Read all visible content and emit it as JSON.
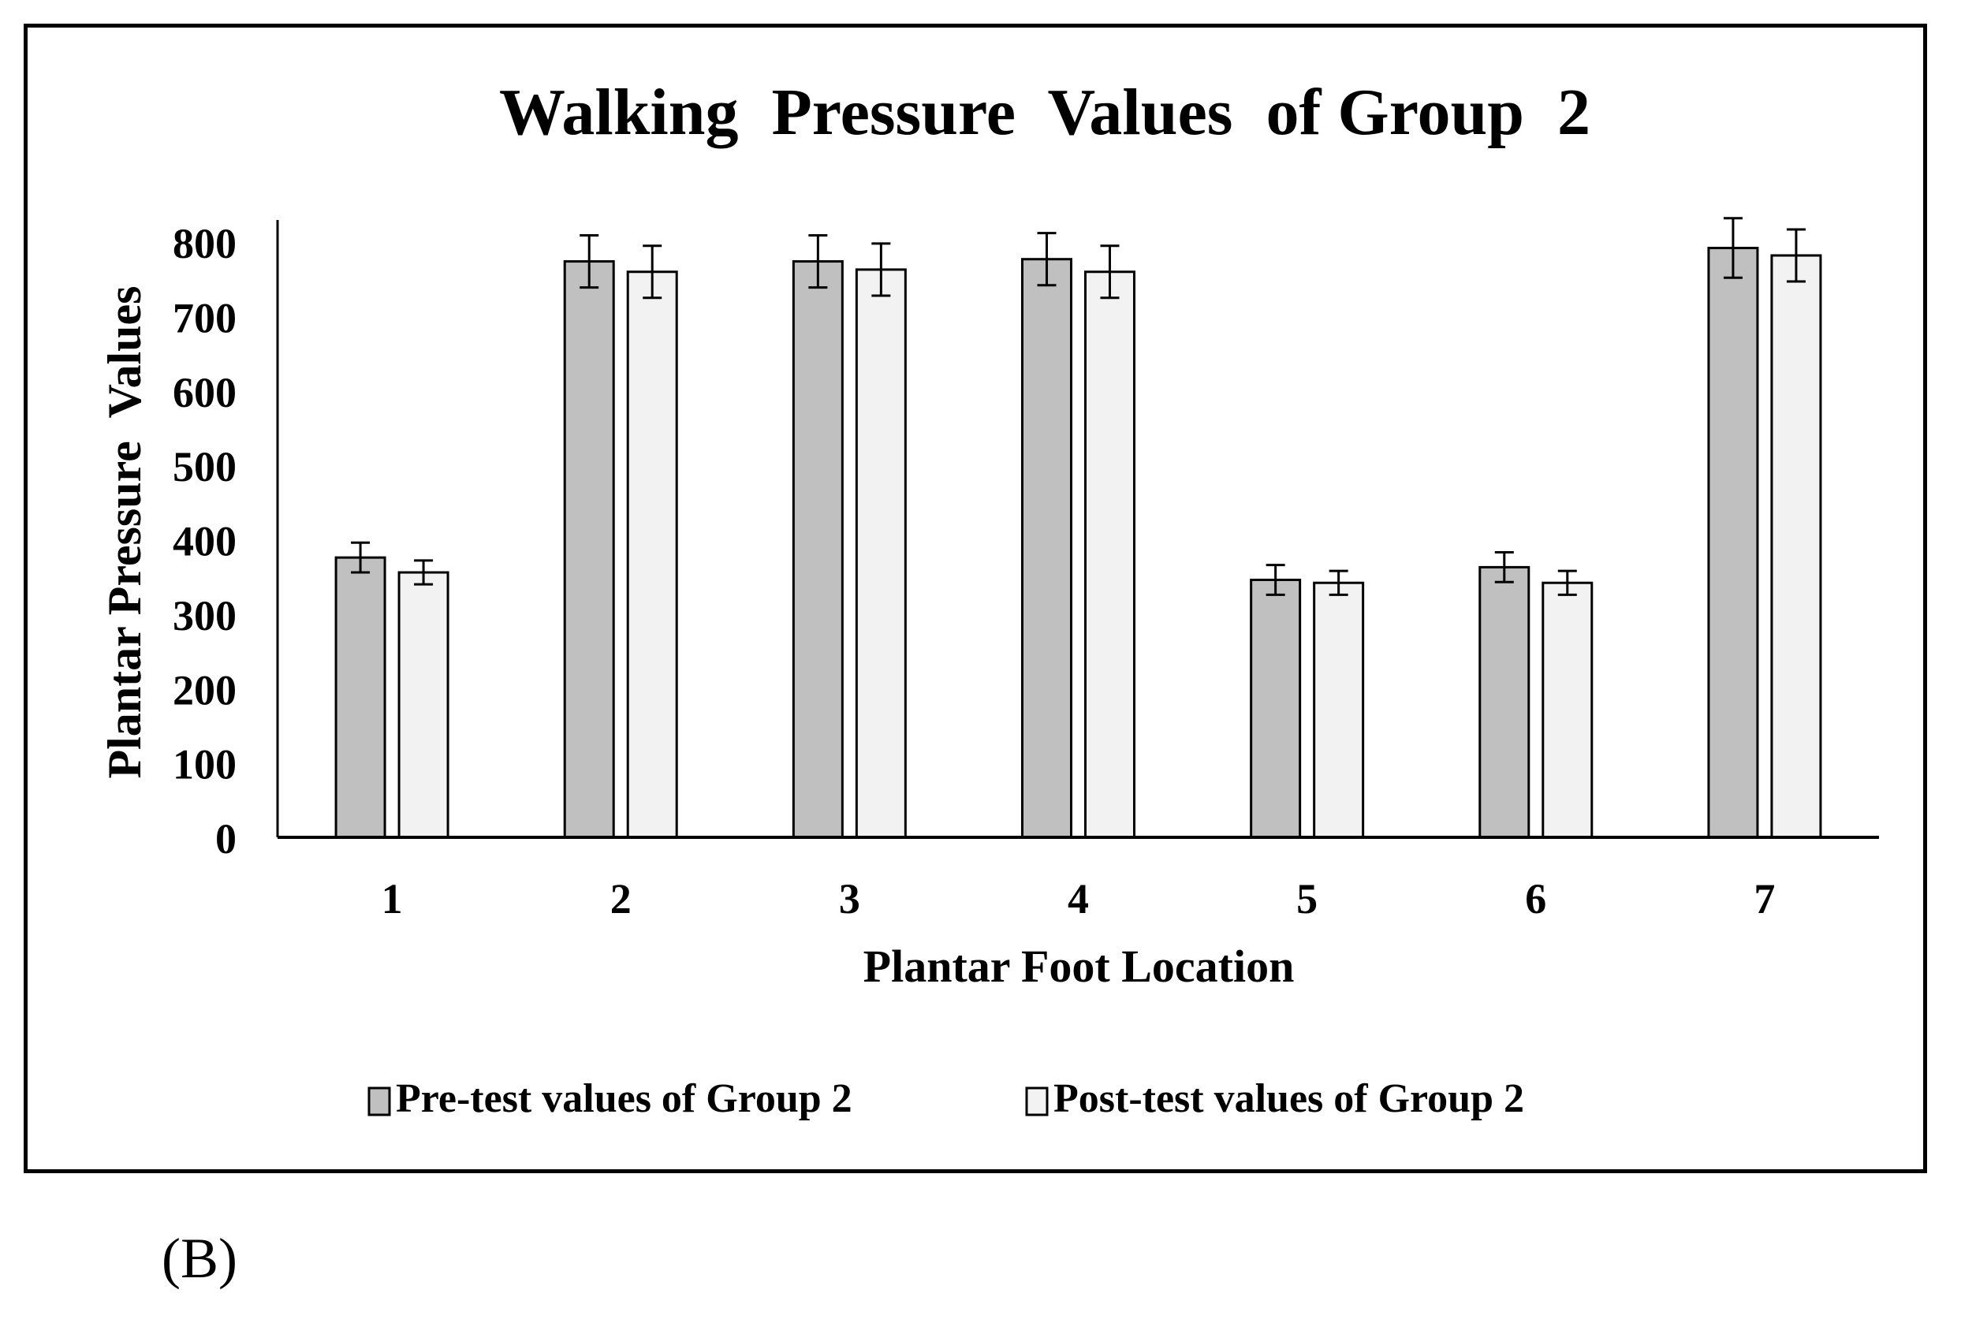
{
  "caption": "(B)",
  "chart_data": {
    "type": "bar",
    "title": "Walking  Pressure  Values  of Group  2",
    "xlabel": "Plantar Foot Location",
    "ylabel": "Plantar Pressure  Values",
    "categories": [
      "1",
      "2",
      "3",
      "4",
      "5",
      "6",
      "7"
    ],
    "ylim": [
      0,
      800
    ],
    "yticks": [
      "0",
      "100",
      "200",
      "300",
      "400",
      "500",
      "600",
      "700",
      "800"
    ],
    "grid": false,
    "legend_position": "bottom",
    "series": [
      {
        "name": "Pre-test values of Group 2",
        "values": [
          376,
          774,
          774,
          777,
          346,
          363,
          792
        ],
        "error": [
          20,
          35,
          35,
          35,
          20,
          20,
          40
        ],
        "color": "#c0c0c0"
      },
      {
        "name": "Post-test values of Group 2",
        "values": [
          356,
          760,
          763,
          760,
          342,
          342,
          782
        ],
        "error": [
          16,
          35,
          35,
          35,
          16,
          16,
          35
        ],
        "color": "#f2f2f2"
      }
    ]
  }
}
